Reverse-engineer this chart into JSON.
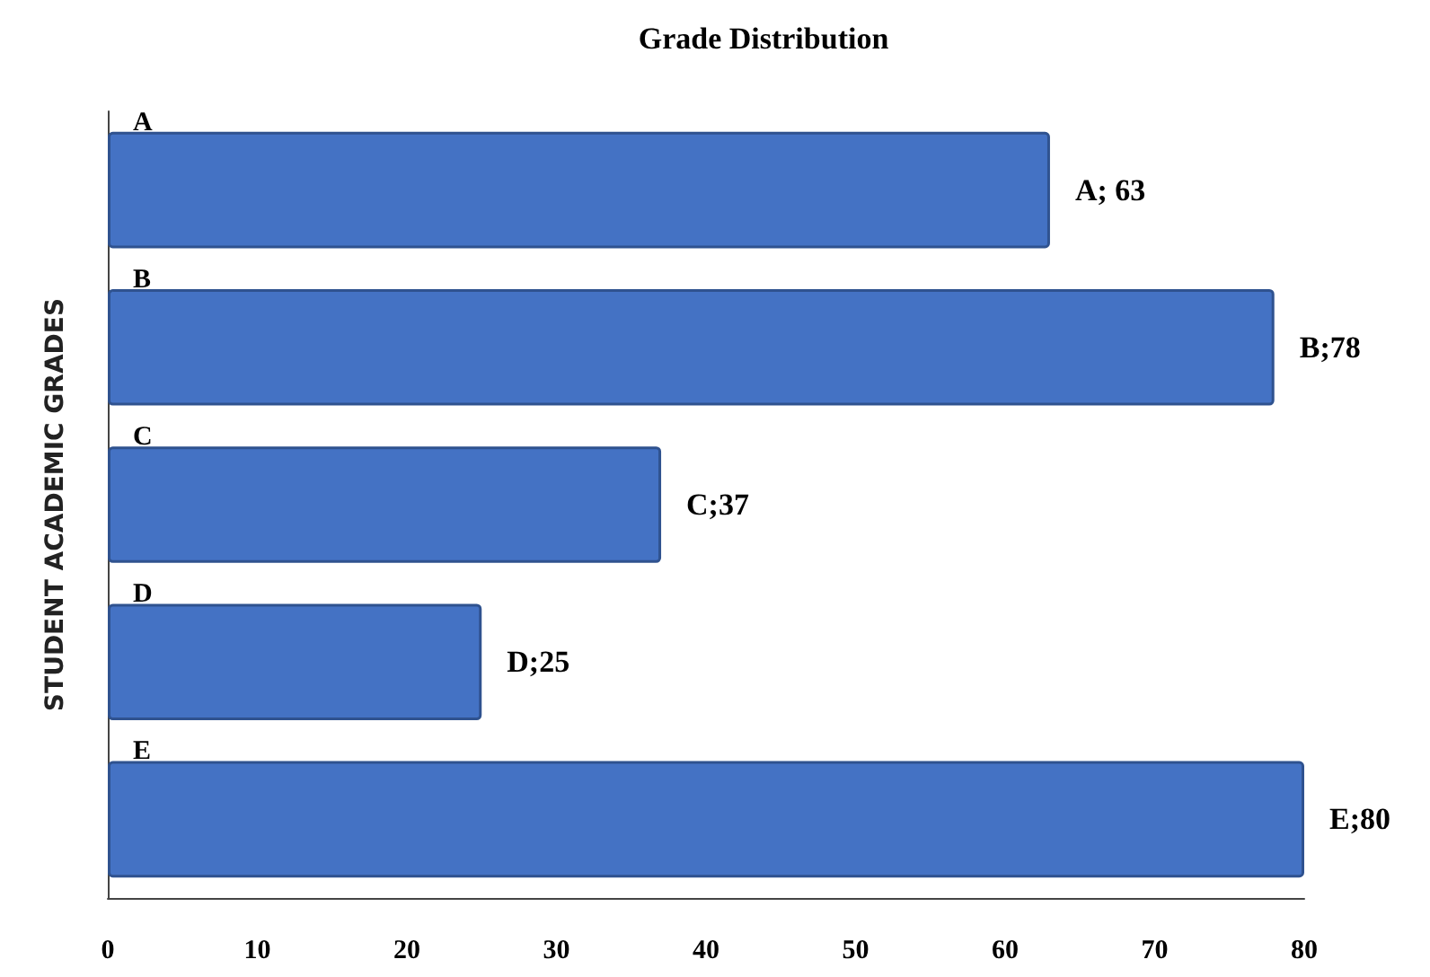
{
  "chart_data": {
    "type": "bar",
    "orientation": "horizontal",
    "title": "Grade Distribution",
    "ylabel": "STUDENT ACADEMIC GRADES",
    "categories": [
      "A",
      "B",
      "C",
      "D",
      "E"
    ],
    "values": [
      63,
      78,
      37,
      25,
      80
    ],
    "value_labels": [
      "A; 63",
      "B;78",
      "C;37",
      "D;25",
      "E;80"
    ],
    "color": "#4472c4",
    "xlim": [
      0,
      80
    ],
    "xticks": [
      0,
      10,
      20,
      30,
      40,
      50,
      60,
      70,
      80
    ],
    "grid": false
  }
}
